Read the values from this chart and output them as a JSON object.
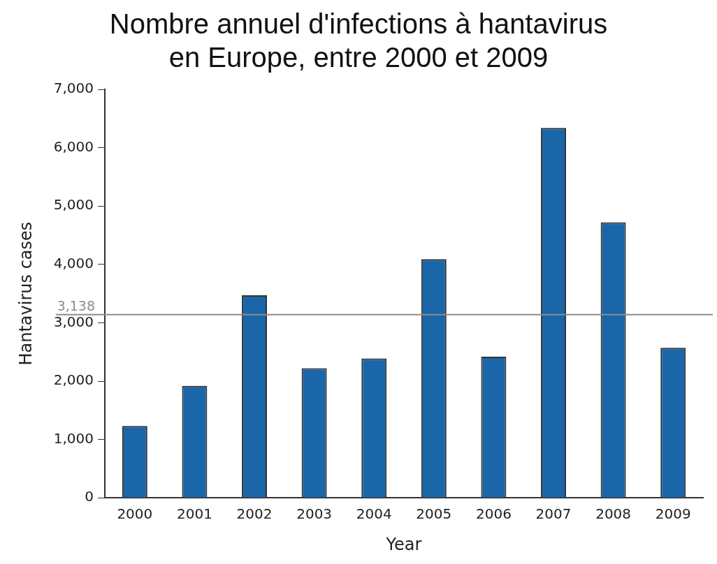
{
  "chart_data": {
    "type": "bar",
    "title": "Nombre annuel d'infections à hantavirus\nen Europe, entre 2000 et 2009",
    "xlabel": "Year",
    "ylabel": "Hantavirus cases",
    "categories": [
      "2000",
      "2001",
      "2002",
      "2003",
      "2004",
      "2005",
      "2006",
      "2007",
      "2008",
      "2009"
    ],
    "values": [
      1230,
      1920,
      3470,
      2220,
      2390,
      4090,
      2420,
      6340,
      4720,
      2570
    ],
    "color": "#1a66a8",
    "ylim": [
      0,
      7000
    ],
    "yticks": [
      {
        "value": 0,
        "label": "0"
      },
      {
        "value": 1000,
        "label": "1,000"
      },
      {
        "value": 2000,
        "label": "2,000"
      },
      {
        "value": 3000,
        "label": "3,000"
      },
      {
        "value": 4000,
        "label": "4,000"
      },
      {
        "value": 5000,
        "label": "5,000"
      },
      {
        "value": 6000,
        "label": "6,000"
      },
      {
        "value": 7000,
        "label": "7,000"
      }
    ],
    "ref_lines": [
      {
        "axis": "y",
        "value": 3138,
        "label": "3,138",
        "color": "#8c8c8c"
      }
    ],
    "grid": false,
    "legend": false
  }
}
